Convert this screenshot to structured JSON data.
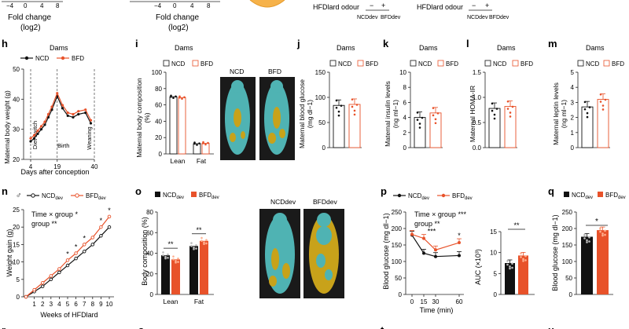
{
  "colors": {
    "ncd": "#111111",
    "bfd": "#e8522a",
    "axis": "#222222",
    "mouse_bg": "#1a1a1a",
    "mouse_lean": "#4fb3b3",
    "mouse_fat": "#c8a21a",
    "orange_circle": "#f6b24a"
  },
  "top": {
    "fold1_ticks": [
      "−4",
      "0",
      "4",
      "8"
    ],
    "fold2_ticks": [
      "−4",
      "0",
      "4",
      "8"
    ],
    "fold_label": "Fold change",
    "fold_sublabel": "(log2)",
    "odour1": "HFDlard odour",
    "odour2": "HFDlard odour",
    "minus": "−",
    "plus": "+",
    "ncd_dev": "NCDdev",
    "bfd_dev": "BFDdev"
  },
  "legend": {
    "ncd": "NCD",
    "bfd": "BFD",
    "ncd_dev": "NCD",
    "bfd_dev": "BFD",
    "dev": "dev",
    "male": "♂"
  },
  "panels": {
    "h": {
      "letter": "h",
      "title": "Dams",
      "ylabel": "Maternal body weight (g)",
      "xlabel": "Days after conception",
      "annotations": [
        "Diet switch",
        "Birth",
        "Weaning"
      ]
    },
    "i": {
      "letter": "i",
      "title": "Dams",
      "ylabel_line1": "Maternal body composition",
      "ylabel_line2": "(%)",
      "img_ncd": "NCD",
      "img_bfd": "BFD"
    },
    "j": {
      "letter": "j",
      "title": "Dams",
      "ylabel_line1": "Maternal blood glucose",
      "ylabel_line2": "(mg dl−1)"
    },
    "k": {
      "letter": "k",
      "title": "Dams",
      "ylabel_line1": "Maternal insulin levels",
      "ylabel_line2": "(ng ml−1)"
    },
    "l": {
      "letter": "l",
      "title": "Dams",
      "ylabel": "Maternal HOMA-IR"
    },
    "m": {
      "letter": "m",
      "title": "Dams",
      "ylabel_line1": "Maternal leptin levels",
      "ylabel_line2": "(ng ml−1)"
    },
    "n": {
      "letter": "n",
      "ylabel": "Weight gain (g)",
      "xlabel": "Weeks of HFDlard",
      "stat1": "Time × group *",
      "stat2": "group **"
    },
    "o": {
      "letter": "o",
      "ylabel": "Body composition (%)",
      "img_ncd": "NCDdev",
      "img_bfd": "BFDdev"
    },
    "p": {
      "letter": "p",
      "ylabel": "Blood glucose (mg dl−1)",
      "xlabel": "Time (min)",
      "stat1": "Time × group ***",
      "stat2": "group **",
      "sig": "***",
      "sig60": "*",
      "auc_ylabel": "AUC (×10³)",
      "auc_sig": "**"
    },
    "q": {
      "letter": "q",
      "ylabel": "Blood glucose (mg dl−1)",
      "sig": "*"
    }
  },
  "bottom_letters": [
    "r",
    "s",
    "t",
    "u"
  ],
  "chart_data": [
    {
      "id": "h",
      "type": "line",
      "title": "Dams",
      "xlabel": "Days after conception",
      "ylabel": "Maternal body weight (g)",
      "x": [
        4,
        6,
        8,
        10,
        12,
        14,
        16,
        19,
        22,
        25,
        28,
        31,
        35,
        38
      ],
      "series": [
        {
          "name": "NCD",
          "values": [
            26,
            27,
            28.5,
            30,
            31.5,
            34,
            36.5,
            41,
            37,
            34.5,
            34,
            35,
            35.5,
            32
          ]
        },
        {
          "name": "BFD",
          "values": [
            27,
            28,
            29.5,
            31,
            32.5,
            35,
            37.5,
            42,
            38,
            35.5,
            35,
            36,
            36.5,
            33
          ]
        }
      ],
      "xticks": [
        4,
        19,
        40
      ],
      "yticks": [
        20,
        30,
        40,
        50
      ],
      "ylim": [
        20,
        50
      ],
      "xlim": [
        0,
        40
      ]
    },
    {
      "id": "i",
      "type": "bar",
      "title": "Dams",
      "categories": [
        "Lean",
        "Fat"
      ],
      "series": [
        {
          "name": "NCD",
          "values": [
            70,
            12.5
          ]
        },
        {
          "name": "BFD",
          "values": [
            69,
            13
          ]
        }
      ],
      "yticks": [
        0,
        20,
        40,
        60,
        80,
        100
      ],
      "ylim": [
        0,
        100
      ]
    },
    {
      "id": "j",
      "type": "bar",
      "title": "Dams",
      "categories": [
        "NCD",
        "BFD"
      ],
      "values": [
        84,
        86
      ],
      "yticks": [
        0,
        50,
        100,
        150
      ],
      "ylim": [
        0,
        150
      ]
    },
    {
      "id": "k",
      "type": "bar",
      "title": "Dams",
      "categories": [
        "NCD",
        "BFD"
      ],
      "values": [
        4.0,
        4.6
      ],
      "yticks": [
        0,
        2,
        4,
        6,
        8,
        10
      ],
      "ylim": [
        0,
        10
      ]
    },
    {
      "id": "l",
      "type": "bar",
      "title": "Dams",
      "categories": [
        "NCD",
        "BFD"
      ],
      "values": [
        0.78,
        0.82
      ],
      "yticks": [
        0,
        0.5,
        1.0,
        1.5
      ],
      "ylim": [
        0,
        1.5
      ]
    },
    {
      "id": "m",
      "type": "bar",
      "title": "Dams",
      "categories": [
        "NCD",
        "BFD"
      ],
      "values": [
        2.7,
        3.2
      ],
      "yticks": [
        0,
        1,
        2,
        3,
        4,
        5
      ],
      "ylim": [
        0,
        5
      ]
    },
    {
      "id": "n",
      "type": "line",
      "xlabel": "Weeks of HFDlard",
      "ylabel": "Weight gain (g)",
      "x": [
        0,
        1,
        2,
        3,
        4,
        5,
        6,
        7,
        8,
        9,
        10
      ],
      "series": [
        {
          "name": "NCDdev",
          "values": [
            0,
            1.5,
            3.0,
            5.0,
            7.0,
            9.0,
            11.0,
            13.0,
            15.0,
            17.5,
            20.0
          ]
        },
        {
          "name": "BFDdev",
          "values": [
            0,
            2.0,
            4.0,
            6.0,
            8.0,
            10.5,
            12.5,
            15.0,
            17.0,
            20.0,
            23.0
          ]
        }
      ],
      "significance_weeks": [
        5,
        6,
        7,
        9,
        10
      ],
      "xticks": [
        1,
        2,
        3,
        4,
        5,
        6,
        7,
        8,
        9,
        10
      ],
      "yticks": [
        0,
        5,
        10,
        15,
        20,
        25
      ],
      "ylim": [
        0,
        25
      ]
    },
    {
      "id": "o",
      "type": "bar",
      "categories": [
        "Lean",
        "Fat"
      ],
      "series": [
        {
          "name": "NCDdev",
          "values": [
            38,
            47
          ]
        },
        {
          "name": "BFDdev",
          "values": [
            34,
            52
          ]
        }
      ],
      "significance": [
        "**",
        "**"
      ],
      "yticks": [
        0,
        20,
        40,
        60,
        80
      ],
      "ylim": [
        0,
        80
      ]
    },
    {
      "id": "p",
      "type": "line",
      "xlabel": "Time (min)",
      "ylabel": "Blood glucose (mg dl−1)",
      "x": [
        0,
        15,
        30,
        60
      ],
      "series": [
        {
          "name": "NCDdev",
          "values": [
            180,
            125,
            115,
            118
          ]
        },
        {
          "name": "BFDdev",
          "values": [
            182,
            170,
            135,
            157
          ]
        }
      ],
      "xticks": [
        0,
        15,
        30,
        60
      ],
      "yticks": [
        0,
        50,
        100,
        150,
        200,
        250
      ],
      "ylim": [
        0,
        250
      ]
    },
    {
      "id": "p_auc",
      "type": "bar",
      "categories": [
        "NCDdev",
        "BFDdev"
      ],
      "values": [
        7.5,
        9.3
      ],
      "ylabel": "AUC (×10³)",
      "yticks": [
        0,
        5,
        10,
        15
      ],
      "ylim": [
        0,
        15
      ],
      "significance": "**"
    },
    {
      "id": "q",
      "type": "bar",
      "categories": [
        "NCDdev",
        "BFDdev"
      ],
      "values": [
        175,
        195
      ],
      "ylabel": "Blood glucose (mg dl−1)",
      "yticks": [
        0,
        50,
        100,
        150,
        200,
        250
      ],
      "ylim": [
        0,
        250
      ],
      "significance": "*"
    }
  ]
}
